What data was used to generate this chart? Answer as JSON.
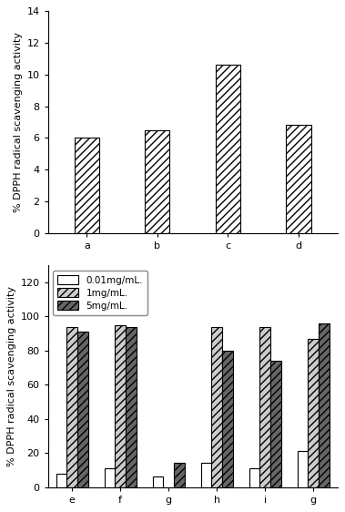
{
  "chart1": {
    "categories": [
      "a",
      "b",
      "c",
      "d"
    ],
    "values": [
      6.0,
      6.5,
      10.6,
      6.8
    ],
    "ylabel": "% DPPH radical scavenging activity",
    "ylim": [
      0,
      14
    ],
    "yticks": [
      0,
      2,
      4,
      6,
      8,
      10,
      12,
      14
    ],
    "bar_width": 0.35
  },
  "chart2": {
    "categories": [
      "e",
      "f",
      "g",
      "h",
      "i",
      "g"
    ],
    "series": {
      "0.01mg/mL.": [
        8,
        11,
        6,
        14,
        11,
        21
      ],
      "1mg/mL.": [
        94,
        95,
        0,
        94,
        94,
        87
      ],
      "5mg/mL.": [
        91,
        94,
        14,
        80,
        74,
        96
      ]
    },
    "ylabel": "% DPPH radical scavenging activity",
    "ylim": [
      0,
      130
    ],
    "yticks": [
      0,
      20,
      40,
      60,
      80,
      100,
      120
    ],
    "bar_width": 0.22
  },
  "styles": [
    {
      "color": "#ffffff",
      "hatch": "",
      "edgecolor": "#000000"
    },
    {
      "color": "#cccccc",
      "hatch": "////",
      "edgecolor": "#000000"
    },
    {
      "color": "#666666",
      "hatch": "////",
      "edgecolor": "#000000"
    }
  ],
  "chart1_hatch": "////",
  "chart1_bar_color": "#ffffff",
  "edge_color": "#000000"
}
